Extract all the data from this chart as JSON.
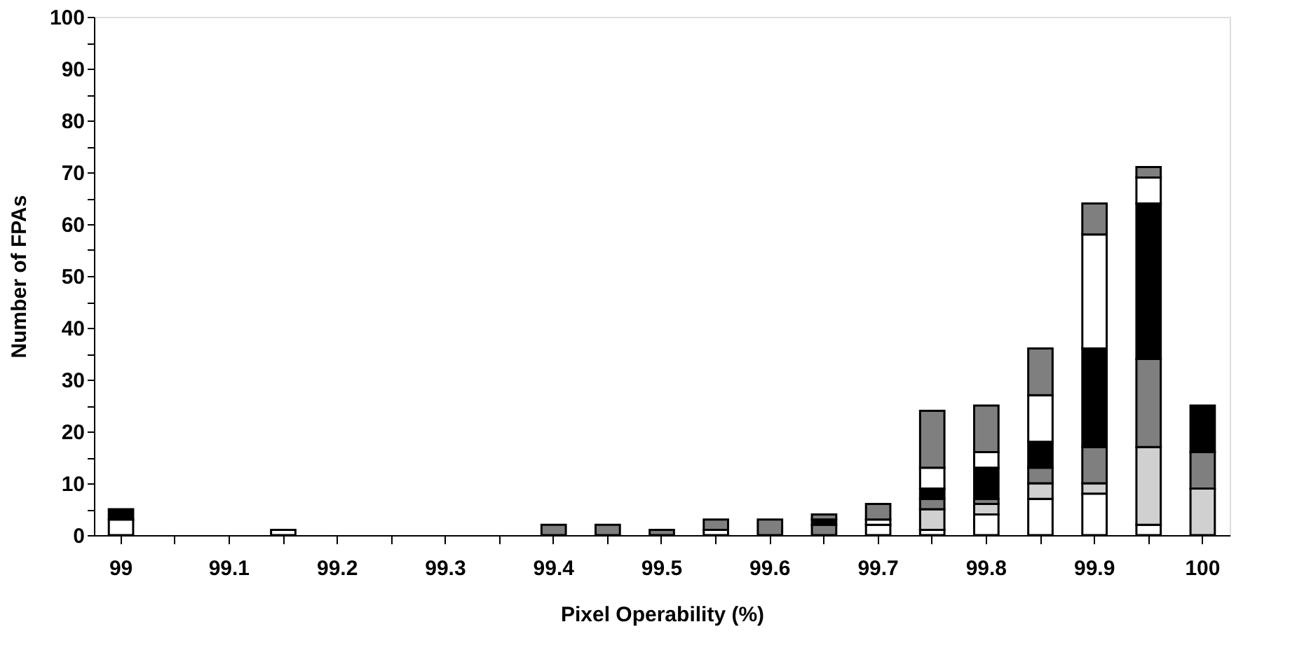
{
  "chart_data": {
    "type": "bar",
    "stacked": true,
    "xlabel": "Pixel Operability (%)",
    "ylabel": "Number of FPAs",
    "categories": [
      "99",
      null,
      "99.1",
      null,
      "99.2",
      null,
      "99.3",
      null,
      "99.4",
      null,
      "99.5",
      null,
      "99.6",
      null,
      "99.7",
      null,
      "99.8",
      null,
      "99.9",
      null,
      "100"
    ],
    "series": [
      {
        "color": "#ffffff",
        "values": [
          3,
          null,
          null,
          1,
          null,
          null,
          null,
          null,
          null,
          null,
          null,
          1,
          null,
          null,
          2,
          1,
          4,
          7,
          8,
          2,
          null
        ]
      },
      {
        "color": "#d0d0d0",
        "values": [
          null,
          null,
          null,
          null,
          null,
          null,
          null,
          null,
          null,
          null,
          null,
          null,
          null,
          null,
          null,
          4,
          2,
          3,
          2,
          15,
          9
        ]
      },
      {
        "color": "#7f7f7f",
        "values": [
          null,
          null,
          null,
          null,
          null,
          null,
          null,
          null,
          2,
          2,
          1,
          2,
          3,
          2,
          null,
          2,
          1,
          3,
          7,
          17,
          7
        ]
      },
      {
        "color": "#000000",
        "values": [
          2,
          null,
          null,
          null,
          null,
          null,
          null,
          null,
          null,
          null,
          null,
          null,
          null,
          1,
          null,
          2,
          6,
          5,
          19,
          30,
          9
        ]
      },
      {
        "color": "#ffffff",
        "values": [
          null,
          null,
          null,
          null,
          null,
          null,
          null,
          null,
          null,
          null,
          null,
          null,
          null,
          null,
          1,
          4,
          3,
          9,
          22,
          5,
          null
        ]
      },
      {
        "color": "#7f7f7f",
        "values": [
          null,
          null,
          null,
          null,
          null,
          null,
          null,
          null,
          null,
          null,
          null,
          null,
          null,
          1,
          3,
          11,
          9,
          9,
          6,
          2,
          null
        ]
      }
    ],
    "ylim": [
      0,
      100
    ],
    "yticks": [
      0,
      {
        "value": 5,
        "label": null
      },
      10,
      {
        "value": 15,
        "label": null
      },
      20,
      {
        "value": 25,
        "label": null
      },
      30,
      {
        "value": 35,
        "label": null
      },
      40,
      {
        "value": 45,
        "label": null
      },
      50,
      {
        "value": 55,
        "label": null
      },
      60,
      {
        "value": 65,
        "label": null
      },
      70,
      {
        "value": 75,
        "label": null
      },
      80,
      {
        "value": 85,
        "label": null
      },
      90,
      {
        "value": 95,
        "label": null
      },
      100
    ],
    "grid": false,
    "legend": false
  }
}
